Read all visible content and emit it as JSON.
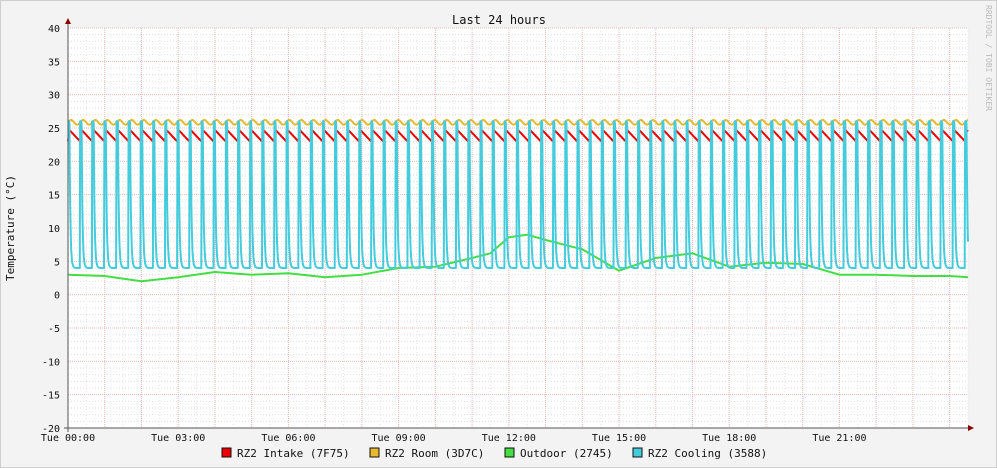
{
  "chart_data": {
    "type": "line",
    "title": "Last 24 hours",
    "ylabel": "Temperature (°C)",
    "xlabel": "",
    "watermark": "RRDTOOL / TOBI OETIKER",
    "ylim": [
      -20,
      40
    ],
    "y_ticks": [
      40,
      35,
      30,
      25,
      20,
      15,
      10,
      5,
      0,
      -5,
      -10,
      -15,
      -20
    ],
    "x_range_hours": [
      0,
      24.5
    ],
    "x_ticks": [
      {
        "hour": 0,
        "label": "Tue 00:00"
      },
      {
        "hour": 3,
        "label": "Tue 03:00"
      },
      {
        "hour": 6,
        "label": "Tue 06:00"
      },
      {
        "hour": 9,
        "label": "Tue 09:00"
      },
      {
        "hour": 12,
        "label": "Tue 12:00"
      },
      {
        "hour": 15,
        "label": "Tue 15:00"
      },
      {
        "hour": 18,
        "label": "Tue 18:00"
      },
      {
        "hour": 21,
        "label": "Tue 21:00"
      }
    ],
    "grid": true,
    "legend_position": "bottom",
    "series": [
      {
        "name": "RZ2 Intake (7F75)",
        "color": "#ee0000",
        "cycle_hours": 0.33,
        "min": 23.0,
        "max": 24.7,
        "x": [
          0,
          24.5
        ]
      },
      {
        "name": "RZ2 Room (3D7C)",
        "color": "#e8b830",
        "cycle_hours": 0.33,
        "min": 25.5,
        "max": 26.2,
        "x": [
          0,
          24.5
        ]
      },
      {
        "name": "Outdoor (2745)",
        "color": "#44dd44",
        "x": [
          0,
          1,
          2,
          3,
          4,
          5,
          6,
          7,
          8,
          9,
          10,
          11,
          11.5,
          12,
          12.5,
          13,
          14,
          15,
          16,
          17,
          18,
          19,
          20,
          21,
          22,
          23,
          24,
          24.5
        ],
        "values": [
          3.0,
          2.8,
          2.0,
          2.6,
          3.4,
          3.0,
          3.2,
          2.6,
          3.0,
          4.0,
          4.2,
          5.5,
          6.2,
          8.6,
          9.0,
          8.2,
          6.8,
          3.6,
          5.5,
          6.2,
          4.2,
          4.8,
          4.6,
          3.0,
          3.0,
          2.8,
          2.8,
          2.6
        ]
      },
      {
        "name": "RZ2 Cooling (3588)",
        "color": "#44ccdd",
        "cycle_hours": 0.33,
        "min": 4.0,
        "max": 26.0,
        "x": [
          0,
          24.5
        ]
      }
    ]
  }
}
